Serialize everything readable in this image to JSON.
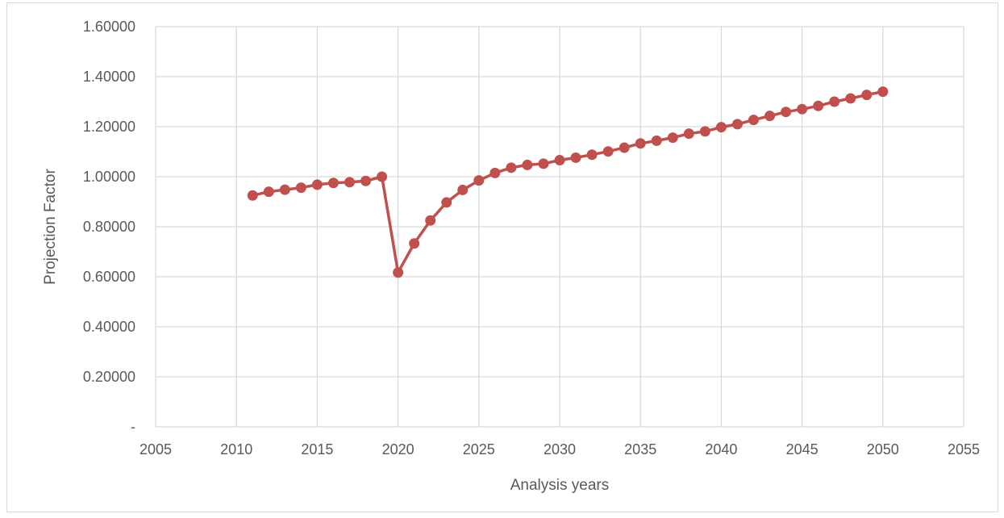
{
  "chart_data": {
    "type": "line",
    "title": "",
    "xlabel": "Analysis years",
    "ylabel": "Projection Factor",
    "xlim": [
      2005,
      2055
    ],
    "ylim": [
      0,
      1.6
    ],
    "x_ticks": [
      2005,
      2010,
      2015,
      2020,
      2025,
      2030,
      2035,
      2040,
      2045,
      2050,
      2055
    ],
    "x_tick_labels": [
      "2005",
      "2010",
      "2015",
      "2020",
      "2025",
      "2030",
      "2035",
      "2040",
      "2045",
      "2050",
      "2055"
    ],
    "y_ticks": [
      0,
      0.2,
      0.4,
      0.6,
      0.8,
      1.0,
      1.2,
      1.4,
      1.6
    ],
    "y_tick_labels": [
      "-",
      "0.20000",
      "0.40000",
      "0.60000",
      "0.80000",
      "1.00000",
      "1.20000",
      "1.40000",
      "1.60000"
    ],
    "grid": true,
    "legend": "none",
    "series": [
      {
        "color": "#c0504d",
        "marker": "circle",
        "x": [
          2011,
          2012,
          2013,
          2014,
          2015,
          2016,
          2017,
          2018,
          2019,
          2020,
          2021,
          2022,
          2023,
          2024,
          2025,
          2026,
          2027,
          2028,
          2029,
          2030,
          2031,
          2032,
          2033,
          2034,
          2035,
          2036,
          2037,
          2038,
          2039,
          2040,
          2041,
          2042,
          2043,
          2044,
          2045,
          2046,
          2047,
          2048,
          2049,
          2050
        ],
        "y": [
          0.925,
          0.94,
          0.948,
          0.956,
          0.968,
          0.975,
          0.978,
          0.983,
          1.0,
          0.617,
          0.733,
          0.825,
          0.897,
          0.947,
          0.985,
          1.015,
          1.036,
          1.047,
          1.052,
          1.066,
          1.076,
          1.088,
          1.101,
          1.116,
          1.133,
          1.144,
          1.156,
          1.172,
          1.181,
          1.198,
          1.21,
          1.227,
          1.243,
          1.259,
          1.27,
          1.283,
          1.3,
          1.313,
          1.327,
          1.34
        ]
      }
    ]
  }
}
